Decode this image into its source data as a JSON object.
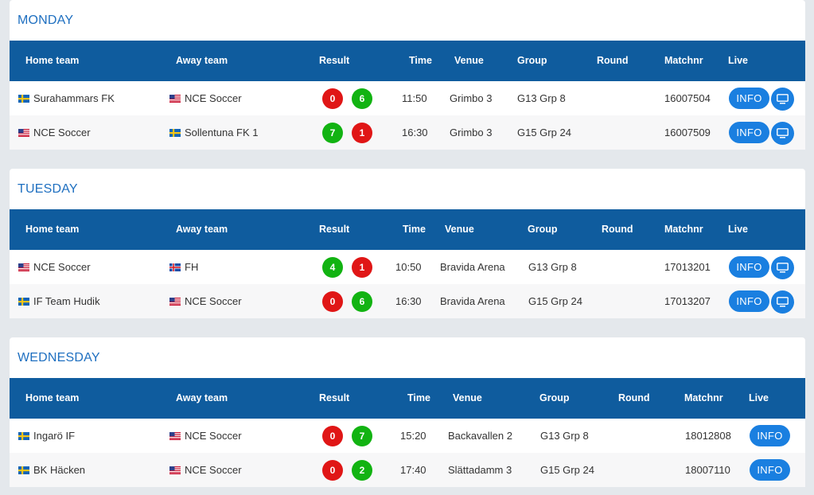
{
  "colors": {
    "header_bg": "#0f5c9e",
    "title": "#1e6fc0",
    "win": "#12b312",
    "loss": "#e01616",
    "button": "#1a7fe0"
  },
  "columns": {
    "home": "Home team",
    "away": "Away team",
    "result": "Result",
    "time": "Time",
    "venue": "Venue",
    "group": "Group",
    "round": "Round",
    "matchnr": "Matchnr",
    "live": "Live"
  },
  "info_label": "INFO",
  "days": [
    {
      "title": "MONDAY",
      "matches": [
        {
          "home": "Surahammars FK",
          "home_flag": "se",
          "away": "NCE Soccer",
          "away_flag": "us",
          "home_score": "0",
          "home_result": "loss",
          "away_score": "6",
          "away_result": "win",
          "time": "11:50",
          "venue": "Grimbo 3",
          "group": "G13 Grp 8",
          "round": "",
          "matchnr": "16007504",
          "live": true
        },
        {
          "home": "NCE Soccer",
          "home_flag": "us",
          "away": "Sollentuna FK 1",
          "away_flag": "se",
          "home_score": "7",
          "home_result": "win",
          "away_score": "1",
          "away_result": "loss",
          "time": "16:30",
          "venue": "Grimbo 3",
          "group": "G15 Grp 24",
          "round": "",
          "matchnr": "16007509",
          "live": true
        }
      ]
    },
    {
      "title": "TUESDAY",
      "matches": [
        {
          "home": "NCE Soccer",
          "home_flag": "us",
          "away": "FH",
          "away_flag": "is",
          "home_score": "4",
          "home_result": "win",
          "away_score": "1",
          "away_result": "loss",
          "time": "10:50",
          "venue": "Bravida Arena",
          "group": "G13 Grp 8",
          "round": "",
          "matchnr": "17013201",
          "live": true
        },
        {
          "home": "IF Team Hudik",
          "home_flag": "se",
          "away": "NCE Soccer",
          "away_flag": "us",
          "home_score": "0",
          "home_result": "loss",
          "away_score": "6",
          "away_result": "win",
          "time": "16:30",
          "venue": "Bravida Arena",
          "group": "G15 Grp 24",
          "round": "",
          "matchnr": "17013207",
          "live": true
        }
      ]
    },
    {
      "title": "WEDNESDAY",
      "matches": [
        {
          "home": "Ingarö IF",
          "home_flag": "se",
          "away": "NCE Soccer",
          "away_flag": "us",
          "home_score": "0",
          "home_result": "loss",
          "away_score": "7",
          "away_result": "win",
          "time": "15:20",
          "venue": "Backavallen 2",
          "group": "G13 Grp 8",
          "round": "",
          "matchnr": "18012808",
          "live": false
        },
        {
          "home": "BK Häcken",
          "home_flag": "se",
          "away": "NCE Soccer",
          "away_flag": "us",
          "home_score": "0",
          "home_result": "loss",
          "away_score": "2",
          "away_result": "win",
          "time": "17:40",
          "venue": "Slättadamm 3",
          "group": "G15 Grp 24",
          "round": "",
          "matchnr": "18007110",
          "live": false
        }
      ]
    }
  ]
}
